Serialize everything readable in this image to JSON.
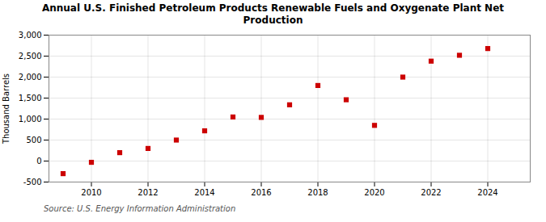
{
  "chart_data": {
    "type": "scatter",
    "title": "Annual U.S. Finished Petroleum Products Renewable Fuels and Oxygenate Plant Net\nProduction",
    "ylabel": "Thousand Barrels",
    "source": "Source: U.S. Energy Information Administration",
    "x": [
      2009,
      2010,
      2011,
      2012,
      2013,
      2014,
      2015,
      2016,
      2017,
      2018,
      2019,
      2020,
      2021,
      2022,
      2023,
      2024
    ],
    "values": [
      -300,
      -30,
      200,
      300,
      500,
      720,
      1050,
      1040,
      1340,
      1800,
      1460,
      850,
      2000,
      2380,
      2520,
      2680
    ],
    "color": "#cc0000",
    "marker": "square",
    "xlim": [
      2008.5,
      2025.5
    ],
    "xticks": [
      2010,
      2012,
      2014,
      2016,
      2018,
      2020,
      2022,
      2024
    ],
    "ylim": [
      -500,
      3000
    ],
    "yticks": [
      -500,
      0,
      500,
      {
        "value": 1000,
        "label": "1,000"
      },
      {
        "value": 1500,
        "label": "1,500"
      },
      {
        "value": 2000,
        "label": "2,000"
      },
      {
        "value": 2500,
        "label": "2,500"
      },
      {
        "value": 3000,
        "label": "3,000"
      }
    ],
    "grid": true
  }
}
